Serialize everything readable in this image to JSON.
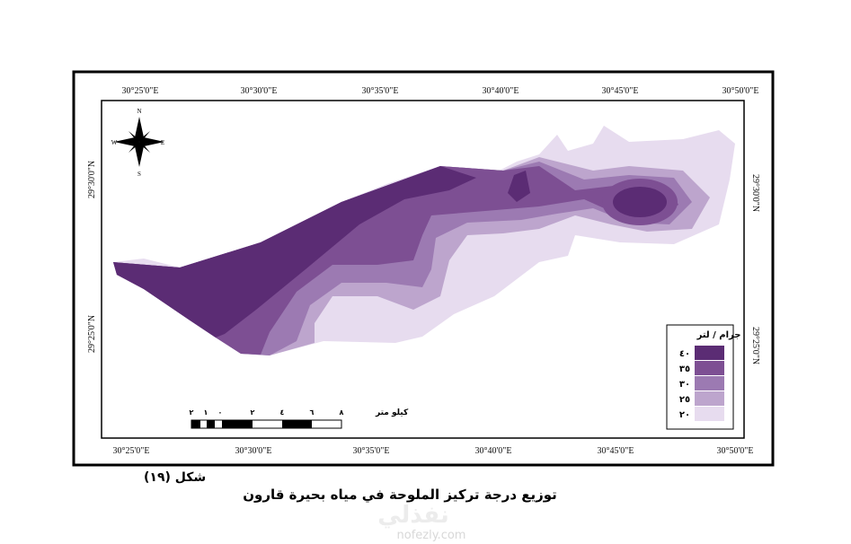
{
  "map": {
    "top_labels": [
      "30°25'0\"E",
      "30°30'0\"E",
      "30°35'0\"E",
      "30°40'0\"E",
      "30°45'0\"E",
      "30°50'0\"E"
    ],
    "bottom_labels": [
      "30°25'0\"E",
      "30°30'0\"E",
      "30°35'0\"E",
      "30°40'0\"E",
      "30°45'0\"E",
      "30°50'0\"E"
    ],
    "left_labels": [
      "29°30'0\"N",
      "29°25'0\"N"
    ],
    "right_labels": [
      "29°30'0\"N",
      "29°25'0\"N"
    ],
    "compass": {
      "n": "N",
      "s": "S",
      "e": "E",
      "w": "W"
    },
    "legend": {
      "title": "جرام / لتر",
      "items": [
        {
          "label": "٤٠",
          "color": "#5b2c74"
        },
        {
          "label": "٣٥",
          "color": "#7d4f93"
        },
        {
          "label": "٣٠",
          "color": "#9c7ab2"
        },
        {
          "label": "٢٥",
          "color": "#bda5cd"
        },
        {
          "label": "٢٠",
          "color": "#e7dcef"
        }
      ]
    },
    "scale": {
      "unit": "كيلو متر",
      "labels": [
        "٢",
        "١",
        "٠",
        "٢",
        "٤",
        "٦",
        "٨"
      ]
    }
  },
  "caption": {
    "figure": "شكل (١٩)",
    "title": "توزيع درجة تركيز الملوحة في مياه بحيرة قارون"
  },
  "watermark": {
    "arabic": "نفذلي",
    "url": "nofezly.com"
  }
}
